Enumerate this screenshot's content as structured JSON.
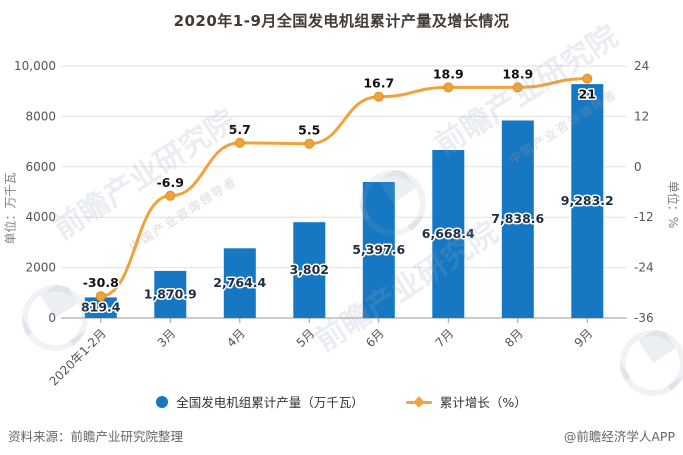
{
  "chart_data": {
    "type": "bar+line",
    "title": "2020年1-9月全国发电机组累计产量及增长情况",
    "categories": [
      "2020年1-2月",
      "3月",
      "4月",
      "5月",
      "6月",
      "7月",
      "8月",
      "9月"
    ],
    "series": [
      {
        "name": "全国发电机组累计产量（万千瓦）",
        "type": "bar",
        "axis": "left",
        "color": "#1678c2",
        "values": [
          819.4,
          1870.9,
          2764.4,
          3802,
          5397.6,
          6668.4,
          7838.6,
          9283.2
        ],
        "labels": [
          "819.4",
          "1,870.9",
          "2,764.4",
          "3,802",
          "5,397.6",
          "6,668.4",
          "7,838.6",
          "9,283.2"
        ]
      },
      {
        "name": "累计增长（%）",
        "type": "line",
        "axis": "right",
        "color": "#f0a33a",
        "values": [
          -30.8,
          -6.9,
          5.7,
          5.5,
          16.7,
          18.9,
          18.9,
          21
        ],
        "labels": [
          "-30.8",
          "-6.9",
          "5.7",
          "5.5",
          "16.7",
          "18.9",
          "18.9",
          "21"
        ],
        "label_positions": [
          "top",
          "top",
          "top",
          "top",
          "top",
          "top",
          "top",
          "bottom"
        ]
      }
    ],
    "left_axis": {
      "name": "单位：万千瓦",
      "min": 0,
      "max": 10000,
      "ticks": [
        "10,000",
        "8000",
        "6000",
        "4000",
        "2000",
        "0"
      ]
    },
    "right_axis": {
      "name": "单位：%",
      "min": -36,
      "max": 24,
      "ticks": [
        "24",
        "12",
        "0",
        "-12",
        "-24",
        "-36"
      ]
    },
    "grid": true,
    "legend_position": "bottom",
    "colors": {
      "bar": "#1678c2",
      "line": "#f0a33a",
      "grid": "#e2e2e2",
      "axis": "#999999",
      "tick_text": "#555555",
      "bar_label": "#1c2f45",
      "line_label": "#111111"
    }
  },
  "footer": {
    "source": "资料来源：前瞻产业研究院整理",
    "credit": "@前瞻经济学人APP"
  },
  "watermark": {
    "text": "前瞻产业研究院",
    "tagline": "中国产业咨询领导者"
  }
}
